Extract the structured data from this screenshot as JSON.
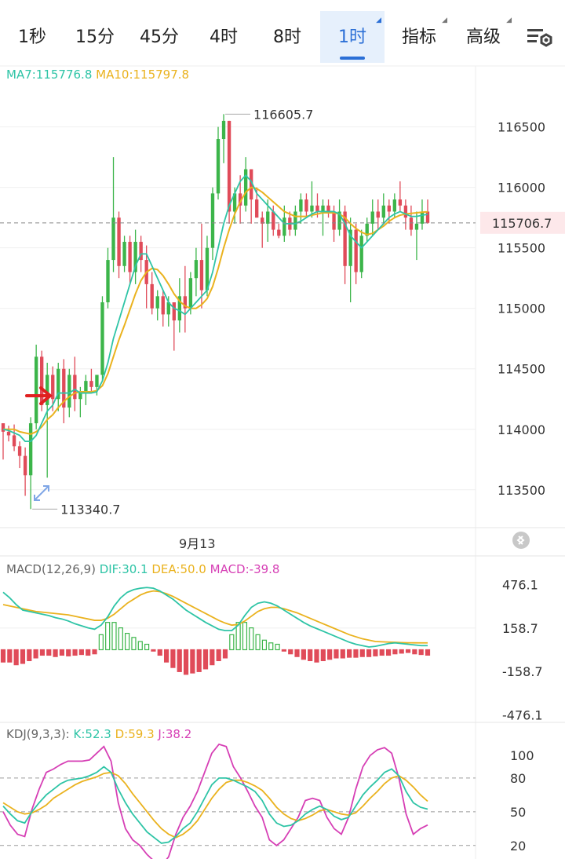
{
  "tabs": [
    {
      "label": "1秒",
      "active": false,
      "dropdown": false
    },
    {
      "label": "15分",
      "active": false,
      "dropdown": false
    },
    {
      "label": "45分",
      "active": false,
      "dropdown": false
    },
    {
      "label": "4时",
      "active": false,
      "dropdown": false
    },
    {
      "label": "8时",
      "active": false,
      "dropdown": false
    },
    {
      "label": "1时",
      "active": true,
      "dropdown": true
    },
    {
      "label": "指标",
      "active": false,
      "dropdown": true
    },
    {
      "label": "高级",
      "active": false,
      "dropdown": true
    }
  ],
  "settings_icon": "chart-settings-icon",
  "colors": {
    "up": "#3cb54a",
    "down": "#e04b59",
    "ma7": "#2ec4a6",
    "ma10": "#eab21e",
    "macd": "#d63fb5",
    "accent": "#2b6fd6"
  },
  "main": {
    "legend": {
      "ma7": "MA7:115776.8",
      "ma10": "MA10:115797.8"
    },
    "high_label": "116605.7",
    "low_label": "113340.7",
    "current_price": "115706.7",
    "date_label": "9月13"
  },
  "macd_panel": {
    "name": "MACD(12,26,9)",
    "dif": "DIF:30.1",
    "dea": "DEA:50.0",
    "macd": "MACD:-39.8"
  },
  "kdj_panel": {
    "name": "KDJ(9,3,3):",
    "k": "K:52.3",
    "d": "D:59.3",
    "j": "J:38.2"
  },
  "chart_data": [
    {
      "type": "candlestick",
      "ticks": [
        "116500",
        "116000",
        "115500",
        "115000",
        "114500",
        "114000",
        "113500"
      ],
      "tick_values": [
        116500,
        116000,
        115500,
        115000,
        114500,
        114000,
        113500
      ],
      "ylim": [
        113200,
        116900
      ],
      "grid": true,
      "candles": [
        [
          114050,
          114050,
          113750,
          113980
        ],
        [
          113980,
          114030,
          113900,
          113950
        ],
        [
          113950,
          114040,
          113820,
          113860
        ],
        [
          113860,
          113900,
          113680,
          113780
        ],
        [
          113780,
          113850,
          113450,
          113620
        ],
        [
          113620,
          114100,
          113340.7,
          114050
        ],
        [
          114050,
          114700,
          114000,
          114600
        ],
        [
          114600,
          114650,
          114150,
          114200
        ],
        [
          114200,
          114550,
          113600,
          114450
        ],
        [
          114450,
          114520,
          114150,
          114250
        ],
        [
          114250,
          114550,
          114150,
          114500
        ],
        [
          114500,
          114580,
          114050,
          114180
        ],
        [
          114180,
          114500,
          114100,
          114450
        ],
        [
          114450,
          114600,
          114150,
          114250
        ],
        [
          114250,
          114350,
          114100,
          114300
        ],
        [
          114300,
          114450,
          114200,
          114400
        ],
        [
          114400,
          114500,
          114300,
          114350
        ],
        [
          114350,
          114450,
          114280,
          114450
        ],
        [
          114450,
          115100,
          114400,
          115050
        ],
        [
          115050,
          115500,
          115000,
          115400
        ],
        [
          115400,
          116250,
          115300,
          115750
        ],
        [
          115750,
          115800,
          115250,
          115350
        ],
        [
          115350,
          115600,
          115300,
          115550
        ],
        [
          115550,
          115600,
          115200,
          115300
        ],
        [
          115300,
          115650,
          115200,
          115550
        ],
        [
          115550,
          115600,
          115300,
          115400
        ],
        [
          115400,
          115520,
          115000,
          115200
        ],
        [
          115200,
          115300,
          114950,
          115000
        ],
        [
          115000,
          115150,
          114900,
          115100
        ],
        [
          115100,
          115150,
          114850,
          114950
        ],
        [
          114950,
          115100,
          114850,
          115050
        ],
        [
          115050,
          115050,
          114650,
          114900
        ],
        [
          114900,
          115250,
          114800,
          115100
        ],
        [
          115100,
          115350,
          114800,
          115000
        ],
        [
          115000,
          115300,
          114950,
          115250
        ],
        [
          115250,
          115500,
          115100,
          115400
        ],
        [
          115400,
          115700,
          115000,
          115150
        ],
        [
          115150,
          115600,
          115100,
          115500
        ],
        [
          115500,
          116000,
          115400,
          115950
        ],
        [
          115950,
          116500,
          115900,
          116400
        ],
        [
          116400,
          116605.7,
          116200,
          116550
        ],
        [
          116550,
          116550,
          115700,
          115800
        ],
        [
          115800,
          116000,
          115700,
          115950
        ],
        [
          115950,
          116100,
          115700,
          115850
        ],
        [
          115850,
          116250,
          115800,
          116150
        ],
        [
          116150,
          116150,
          115700,
          115900
        ],
        [
          115900,
          116000,
          115750,
          115750
        ],
        [
          115750,
          115800,
          115500,
          115700
        ],
        [
          115700,
          115900,
          115550,
          115800
        ],
        [
          115800,
          115850,
          115600,
          115650
        ],
        [
          115650,
          115700,
          115580,
          115600
        ],
        [
          115600,
          115850,
          115550,
          115750
        ],
        [
          115750,
          115800,
          115600,
          115650
        ],
        [
          115650,
          115850,
          115600,
          115800
        ],
        [
          115800,
          115950,
          115700,
          115900
        ],
        [
          115900,
          115950,
          115750,
          115800
        ],
        [
          115800,
          116050,
          115750,
          115850
        ],
        [
          115850,
          115950,
          115750,
          115800
        ],
        [
          115800,
          115900,
          115600,
          115850
        ],
        [
          115850,
          115900,
          115750,
          115800
        ],
        [
          115800,
          115850,
          115550,
          115650
        ],
        [
          115650,
          115900,
          115600,
          115800
        ],
        [
          115800,
          115850,
          115200,
          115350
        ],
        [
          115350,
          115750,
          115050,
          115650
        ],
        [
          115650,
          115700,
          115200,
          115300
        ],
        [
          115300,
          115650,
          115250,
          115600
        ],
        [
          115600,
          115750,
          115550,
          115700
        ],
        [
          115700,
          115900,
          115600,
          115800
        ],
        [
          115800,
          115900,
          115650,
          115750
        ],
        [
          115750,
          115950,
          115700,
          115850
        ],
        [
          115850,
          115900,
          115700,
          115800
        ],
        [
          115800,
          115950,
          115750,
          115900
        ],
        [
          115900,
          116050,
          115800,
          115850
        ],
        [
          115850,
          115900,
          115650,
          115750
        ],
        [
          115750,
          115850,
          115600,
          115650
        ],
        [
          115650,
          115800,
          115400,
          115700
        ],
        [
          115700,
          115900,
          115650,
          115800
        ],
        [
          115800,
          115900,
          115700,
          115706.7
        ]
      ],
      "ma7": [
        114000,
        113990,
        113970,
        113950,
        113900,
        113900,
        113950,
        114050,
        114150,
        114200,
        114300,
        114300,
        114300,
        114330,
        114300,
        114300,
        114300,
        114310,
        114400,
        114550,
        114750,
        114900,
        115050,
        115200,
        115350,
        115450,
        115450,
        115350,
        115250,
        115150,
        115050,
        115000,
        114980,
        114950,
        115000,
        115050,
        115100,
        115150,
        115300,
        115500,
        115700,
        115850,
        115950,
        116050,
        116100,
        116050,
        115950,
        115900,
        115850,
        115800,
        115750,
        115700,
        115700,
        115700,
        115720,
        115750,
        115780,
        115800,
        115800,
        115800,
        115800,
        115780,
        115700,
        115600,
        115550,
        115500,
        115550,
        115600,
        115650,
        115700,
        115750,
        115780,
        115800,
        115780,
        115760,
        115760,
        115770,
        115776.8
      ],
      "ma10": [
        114000,
        114000,
        114000,
        113980,
        113970,
        113960,
        113980,
        114020,
        114080,
        114120,
        114180,
        114230,
        114270,
        114300,
        114310,
        114310,
        114310,
        114320,
        114360,
        114460,
        114600,
        114740,
        114860,
        114990,
        115120,
        115230,
        115300,
        115330,
        115320,
        115270,
        115200,
        115120,
        115060,
        115020,
        115000,
        115000,
        115030,
        115080,
        115180,
        115330,
        115500,
        115650,
        115780,
        115880,
        115960,
        116000,
        115990,
        115960,
        115920,
        115880,
        115840,
        115800,
        115780,
        115760,
        115760,
        115760,
        115770,
        115780,
        115790,
        115790,
        115790,
        115780,
        115750,
        115700,
        115660,
        115630,
        115610,
        115620,
        115650,
        115680,
        115720,
        115750,
        115770,
        115780,
        115785,
        115790,
        115795,
        115797.8
      ]
    },
    {
      "type": "bar+line",
      "name": "MACD(12,26,9)",
      "ticks": [
        "476.1",
        "158.7",
        "-158.7",
        "-476.1"
      ],
      "tick_values": [
        476.1,
        158.7,
        -158.7,
        -476.1
      ],
      "ylim": [
        -520,
        560
      ],
      "dif": [
        420,
        380,
        330,
        290,
        280,
        270,
        260,
        250,
        235,
        225,
        210,
        190,
        175,
        160,
        150,
        180,
        240,
        320,
        380,
        420,
        440,
        450,
        455,
        450,
        430,
        400,
        370,
        330,
        290,
        260,
        230,
        200,
        175,
        150,
        140,
        140,
        180,
        250,
        310,
        340,
        350,
        340,
        320,
        290,
        260,
        230,
        200,
        175,
        155,
        135,
        115,
        95,
        75,
        55,
        40,
        30,
        20,
        25,
        35,
        45,
        50,
        45,
        40,
        35,
        30,
        30.1
      ],
      "dea": [
        330,
        320,
        310,
        300,
        290,
        280,
        275,
        270,
        265,
        260,
        255,
        245,
        235,
        225,
        215,
        215,
        230,
        260,
        300,
        340,
        370,
        400,
        420,
        430,
        425,
        410,
        390,
        365,
        340,
        315,
        290,
        265,
        240,
        215,
        195,
        180,
        185,
        210,
        245,
        280,
        300,
        310,
        310,
        300,
        285,
        270,
        250,
        230,
        210,
        190,
        170,
        150,
        130,
        110,
        95,
        80,
        70,
        60,
        58,
        56,
        54,
        52,
        51,
        50.5,
        50.2,
        50.0
      ],
      "hist": [
        -90,
        -90,
        -110,
        -100,
        -80,
        -60,
        -40,
        -40,
        -50,
        -40,
        -45,
        -40,
        -35,
        -40,
        -30,
        110,
        200,
        200,
        160,
        120,
        90,
        60,
        40,
        -10,
        -40,
        -90,
        -130,
        -160,
        -180,
        -170,
        -160,
        -140,
        -110,
        -80,
        -60,
        110,
        200,
        200,
        160,
        110,
        70,
        50,
        40,
        -10,
        -30,
        -50,
        -70,
        -80,
        -90,
        -80,
        -70,
        -60,
        -60,
        -55,
        -55,
        -50,
        -50,
        -45,
        -40,
        -40,
        -30,
        -25,
        -20,
        -30,
        -35,
        -39.8
      ]
    },
    {
      "type": "line",
      "name": "KDJ(9,3,3)",
      "ticks": [
        "100",
        "80",
        "50",
        "20"
      ],
      "tick_values": [
        100,
        80,
        50,
        20
      ],
      "ylim": [
        8,
        112
      ],
      "k": [
        55,
        48,
        42,
        40,
        50,
        58,
        65,
        70,
        75,
        78,
        79,
        80,
        82,
        85,
        90,
        85,
        70,
        58,
        48,
        40,
        32,
        27,
        22,
        23,
        28,
        35,
        40,
        50,
        62,
        74,
        80,
        80,
        78,
        75,
        72,
        68,
        60,
        48,
        40,
        37,
        38,
        42,
        48,
        52,
        55,
        52,
        46,
        43,
        45,
        55,
        65,
        72,
        78,
        85,
        88,
        82,
        68,
        58,
        54,
        52.3
      ],
      "d": [
        58,
        54,
        50,
        48,
        49,
        52,
        56,
        62,
        66,
        70,
        74,
        77,
        79,
        81,
        84,
        85,
        82,
        75,
        66,
        58,
        50,
        42,
        35,
        30,
        27,
        30,
        35,
        42,
        52,
        62,
        70,
        76,
        78,
        78,
        76,
        73,
        69,
        62,
        54,
        48,
        44,
        42,
        44,
        47,
        51,
        52,
        50,
        48,
        47,
        49,
        55,
        62,
        68,
        75,
        80,
        82,
        78,
        72,
        65,
        59.3
      ],
      "j": [
        50,
        38,
        30,
        28,
        52,
        70,
        85,
        88,
        92,
        95,
        95,
        95,
        96,
        102,
        108,
        95,
        58,
        35,
        25,
        20,
        12,
        6,
        2,
        10,
        30,
        45,
        55,
        68,
        85,
        102,
        110,
        108,
        90,
        80,
        68,
        55,
        45,
        25,
        20,
        25,
        35,
        45,
        60,
        62,
        60,
        45,
        35,
        30,
        45,
        70,
        90,
        100,
        105,
        107,
        102,
        80,
        48,
        30,
        35,
        38.2
      ]
    }
  ]
}
